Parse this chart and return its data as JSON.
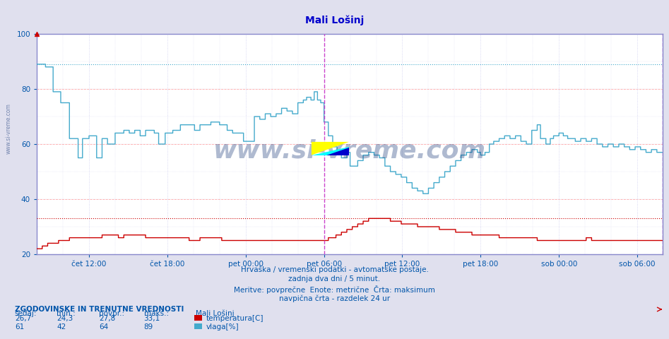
{
  "title": "Mali Lošinj",
  "title_color": "#0000cc",
  "bg_color": "#e0e0ee",
  "plot_bg_color": "#ffffff",
  "grid_color_h": "#ffaaaa",
  "grid_color_v": "#ccccee",
  "xlabel_ticks": [
    "čet 12:00",
    "čet 18:00",
    "pet 00:00",
    "pet 06:00",
    "pet 12:00",
    "pet 18:00",
    "sob 00:00",
    "sob 06:00"
  ],
  "tick_color": "#0055aa",
  "temp_color": "#cc0000",
  "hum_color": "#44aacc",
  "border_color": "#8888cc",
  "vline_color": "#cc44cc",
  "vline_style": "--",
  "temp_max_value": 33.1,
  "hum_max_value": 89,
  "ymin": 20,
  "ymax": 100,
  "yticks": [
    20,
    40,
    60,
    80,
    100
  ],
  "watermark": "www.si-vreme.com",
  "watermark_color": "#1a3a7a",
  "watermark_alpha": 0.35,
  "logo_yellow": "#ffff00",
  "logo_cyan": "#00ffff",
  "logo_blue": "#0000cc",
  "text_info_1": "Hrvaška / vremenski podatki - avtomatske postaje.",
  "text_info_2": "zadnja dva dni / 5 minut.",
  "text_info_3": "Meritve: povprečne  Enote: metrične  Črta: maksimum",
  "text_info_4": "navpična črta - razdelek 24 ur",
  "text_color_info": "#0055aa",
  "legend_title": "ZGODOVINSKE IN TRENUTNE VREDNOSTI",
  "legend_color": "#0055aa",
  "sedaj_temp": "26,7",
  "min_temp": "24,3",
  "povpr_temp": "27,8",
  "maks_temp": "33,1",
  "sedaj_hum": "61",
  "min_hum": "42",
  "povpr_hum": "64",
  "maks_hum": "89",
  "legend_temp_label": "temperatura[C]",
  "legend_hum_label": "vlaga[%]",
  "station_name": "Mali Lošinj"
}
